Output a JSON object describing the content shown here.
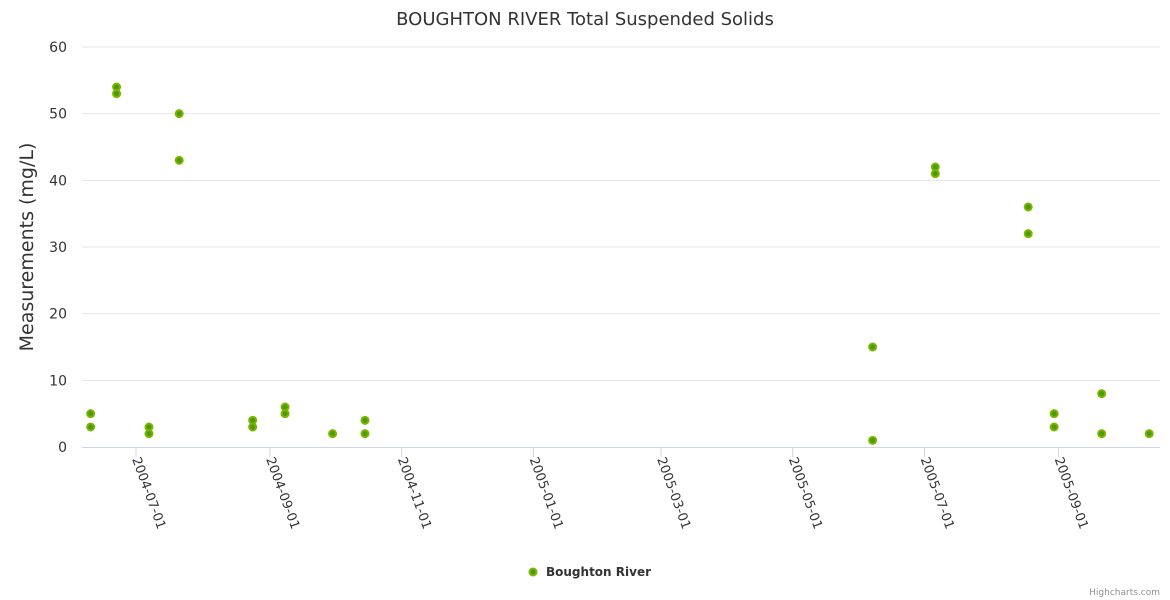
{
  "chart_data": {
    "type": "scatter",
    "title": "BOUGHTON RIVER Total Suspended Solids",
    "xlabel": "",
    "ylabel": "Measurements (mg/L)",
    "ylim": [
      0,
      60
    ],
    "yticks": [
      "0",
      "10",
      "20",
      "30",
      "40",
      "50",
      "60"
    ],
    "xlim": [
      "2004-06-06",
      "2005-10-18"
    ],
    "xticks": [
      "2004-07-01",
      "2004-09-01",
      "2004-11-01",
      "2005-01-01",
      "2005-03-01",
      "2005-05-01",
      "2005-07-01",
      "2005-09-01"
    ],
    "grid": true,
    "legend_position": "bottom-center",
    "series": [
      {
        "name": "Boughton River",
        "color": "#7cb500",
        "marker_color": "#4c9a00",
        "points": [
          [
            "2004-06-10",
            5
          ],
          [
            "2004-06-10",
            3
          ],
          [
            "2004-06-22",
            54
          ],
          [
            "2004-06-22",
            53
          ],
          [
            "2004-07-07",
            3
          ],
          [
            "2004-07-07",
            2
          ],
          [
            "2004-07-21",
            50
          ],
          [
            "2004-07-21",
            43
          ],
          [
            "2004-08-24",
            4
          ],
          [
            "2004-08-24",
            3
          ],
          [
            "2004-09-08",
            6
          ],
          [
            "2004-09-08",
            5
          ],
          [
            "2004-09-30",
            2
          ],
          [
            "2004-10-15",
            4
          ],
          [
            "2004-10-15",
            2
          ],
          [
            "2005-06-07",
            15
          ],
          [
            "2005-06-07",
            1
          ],
          [
            "2005-07-06",
            42
          ],
          [
            "2005-07-06",
            41
          ],
          [
            "2005-08-18",
            36
          ],
          [
            "2005-08-18",
            32
          ],
          [
            "2005-08-30",
            5
          ],
          [
            "2005-08-30",
            3
          ],
          [
            "2005-09-21",
            8
          ],
          [
            "2005-09-21",
            2
          ],
          [
            "2005-10-13",
            2
          ]
        ]
      }
    ]
  },
  "credits": "Highcharts.com"
}
